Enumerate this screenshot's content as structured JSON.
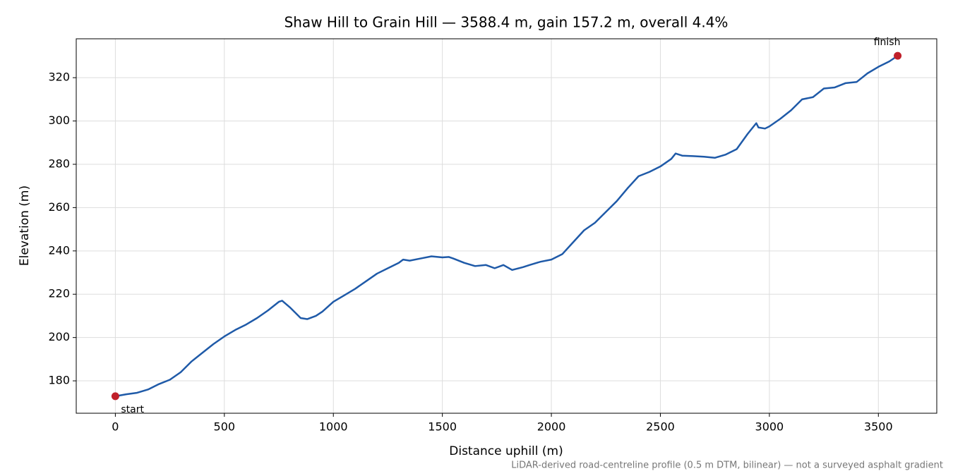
{
  "chart_data": {
    "type": "line",
    "title": "Shaw Hill to Grain Hill — 3588.4 m, gain 157.2 m, overall 4.4%",
    "x_label": "Distance uphill (m)",
    "y_label": "Elevation (m)",
    "footnote": "LiDAR-derived road-centreline profile (0.5 m DTM, bilinear) — not a surveyed asphalt gradient",
    "x": [
      0,
      50,
      100,
      150,
      200,
      250,
      300,
      350,
      400,
      450,
      500,
      550,
      600,
      650,
      700,
      750,
      765,
      800,
      850,
      880,
      920,
      950,
      1000,
      1050,
      1100,
      1150,
      1200,
      1250,
      1300,
      1320,
      1350,
      1400,
      1450,
      1500,
      1530,
      1550,
      1600,
      1650,
      1700,
      1740,
      1780,
      1820,
      1870,
      1900,
      1950,
      2000,
      2050,
      2100,
      2150,
      2200,
      2250,
      2300,
      2350,
      2400,
      2450,
      2500,
      2550,
      2570,
      2600,
      2650,
      2700,
      2750,
      2800,
      2850,
      2900,
      2940,
      2950,
      2980,
      3000,
      3050,
      3100,
      3150,
      3200,
      3250,
      3300,
      3350,
      3400,
      3450,
      3500,
      3550,
      3588.4
    ],
    "series": [
      {
        "name": "Elevation",
        "color": "#1f5aa8",
        "values": [
          172.9,
          173.8,
          174.5,
          176,
          178.5,
          180.5,
          184,
          189,
          193,
          197,
          200.5,
          203.5,
          206,
          209,
          212.5,
          216.5,
          217,
          214,
          209,
          208.5,
          210,
          212,
          216.5,
          219.5,
          222.5,
          226,
          229.5,
          232,
          234.5,
          236,
          235.5,
          236.5,
          237.5,
          237,
          237.2,
          236.5,
          234.5,
          233,
          233.5,
          232,
          233.5,
          231.2,
          232.5,
          233.5,
          235,
          236,
          238.5,
          244,
          249.5,
          253,
          258,
          263,
          269,
          274.5,
          276.5,
          279,
          282.5,
          285,
          284,
          283.8,
          283.5,
          283,
          284.5,
          287,
          294,
          299,
          297,
          296.5,
          297.5,
          301,
          305,
          310,
          311,
          315,
          315.5,
          317.5,
          318,
          322,
          325,
          327.5,
          330.1
        ]
      }
    ],
    "markers": [
      {
        "label": "start",
        "x": 0,
        "y": 172.9,
        "color": "#c0202a"
      },
      {
        "label": "finish",
        "x": 3588.4,
        "y": 330.1,
        "color": "#c0202a"
      }
    ],
    "xlim": [
      -179.4,
      3767.8
    ],
    "ylim": [
      165.04,
      337.96
    ],
    "xticks": [
      0,
      500,
      1000,
      1500,
      2000,
      2500,
      3000,
      3500
    ],
    "yticks": [
      180,
      200,
      220,
      240,
      260,
      280,
      300,
      320
    ],
    "grid": true
  }
}
